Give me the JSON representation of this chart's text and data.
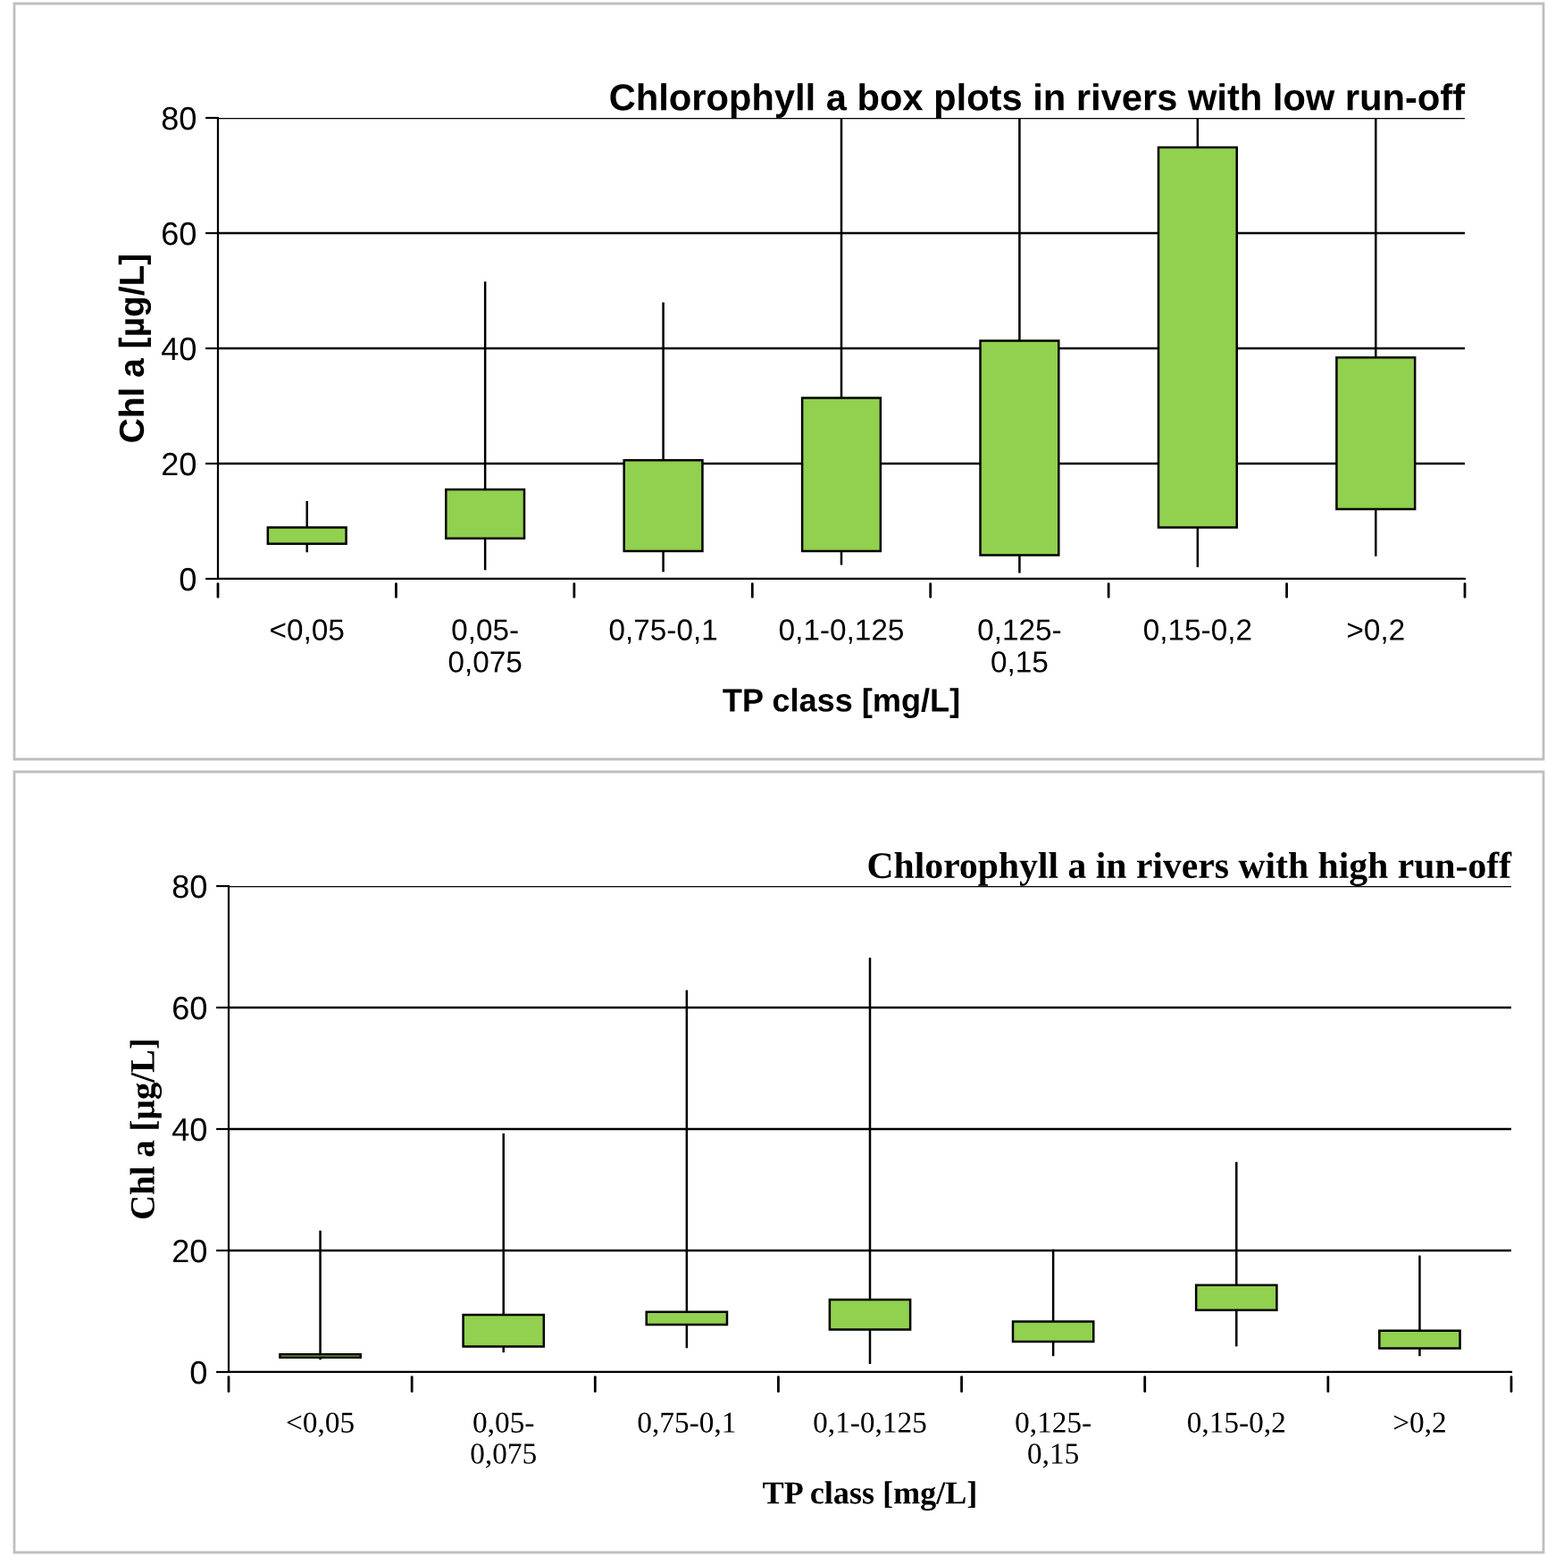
{
  "chart_data": [
    {
      "type": "candlestick",
      "title": "Chlorophyll a box plots in rivers with low run-off",
      "xlabel": "TP class [mg/L]",
      "ylabel": "Chl a [µg/L]",
      "categories": [
        "<0,05",
        "0,05-\n0,075",
        "0,75-0,1",
        "0,1-0,125",
        "0,125-\n0,15",
        "0,15-0,2",
        ">0,2"
      ],
      "color": "#92d050",
      "ohlc": [
        [
          6.1,
          13.3,
          4.8,
          8.9
        ],
        [
          7.0,
          51.4,
          1.7,
          15.5
        ],
        [
          4.8,
          47.8,
          1.4,
          20.6
        ],
        [
          4.8,
          80,
          2.6,
          31.4
        ],
        [
          4.1,
          80,
          1.2,
          41.3
        ],
        [
          8.9,
          80,
          2.2,
          74.9
        ],
        [
          12.1,
          80,
          4.1,
          38.4
        ]
      ],
      "ylim": [
        0,
        80
      ],
      "yticks": [
        0,
        20,
        40,
        60,
        80
      ],
      "grid": "y"
    },
    {
      "type": "candlestick",
      "title": "Chlorophyll a in rivers with high run-off",
      "xlabel": "TP class [mg/L]",
      "ylabel": "Chl a [µg/L]",
      "categories": [
        "<0,05",
        "0,05-\n0,075",
        "0,75-0,1",
        "0,1-0,125",
        "0,125-\n0,15",
        "0,15-0,2",
        ">0,2"
      ],
      "color": "#92d050",
      "ohlc": [
        [
          2.4,
          23.1,
          2.2,
          2.9
        ],
        [
          4.2,
          39.1,
          3.4,
          9.4
        ],
        [
          7.8,
          62.7,
          4.1,
          9.9
        ],
        [
          7.0,
          68.0,
          1.5,
          11.9
        ],
        [
          5.0,
          20.0,
          2.8,
          8.3
        ],
        [
          10.2,
          34.4,
          4.4,
          14.3
        ],
        [
          3.9,
          19.0,
          2.8,
          6.8
        ]
      ],
      "ylim": [
        0,
        80
      ],
      "yticks": [
        0,
        20,
        40,
        60,
        80
      ],
      "grid": "y"
    }
  ]
}
